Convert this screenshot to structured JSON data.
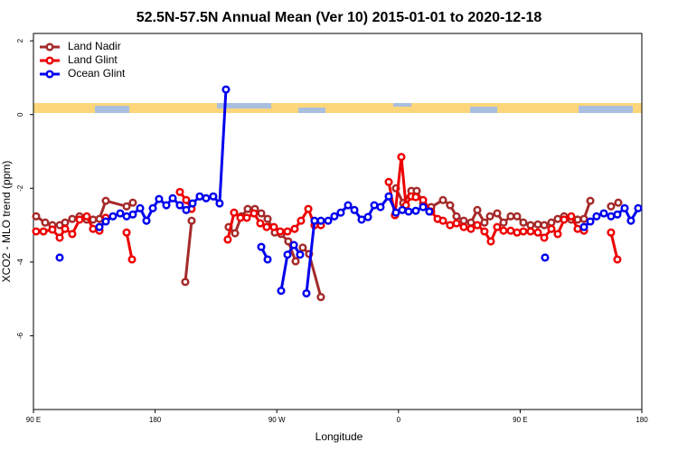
{
  "chart_data": {
    "type": "line",
    "title": "52.5N-57.5N Annual Mean (Ver 10)   2015-01-01 to 2020-12-18",
    "xlabel": "Longitude",
    "ylabel": "XCO2 - MLO trend (ppm)",
    "xlim": [
      90,
      540
    ],
    "ylim": [
      -8,
      2.2
    ],
    "xticks": [
      {
        "value": 90,
        "label": "90 E"
      },
      {
        "value": 180,
        "label": "180"
      },
      {
        "value": 270,
        "label": "90 W"
      },
      {
        "value": 360,
        "label": "0"
      },
      {
        "value": 450,
        "label": "90 E"
      },
      {
        "value": 540,
        "label": "180"
      }
    ],
    "yticks": [
      2,
      0,
      -2,
      -4,
      -6
    ],
    "legend": "top-left",
    "series": [
      {
        "name": "Land Nadir",
        "color": "#a52a2a",
        "x": [
          92,
          98.7,
          104,
          109.4,
          113.4,
          118.7,
          124.1,
          129.4,
          134.1,
          138.8,
          143.5,
          158.9,
          163.5,
          null,
          202.3,
          207,
          null,
          234.4,
          239.1,
          243.8,
          248.5,
          253.8,
          258.5,
          263.2,
          268.5,
          273.2,
          278.5,
          283.9,
          289.2,
          293.9,
          302.6,
          null,
          358.1,
          363.5,
          369.5,
          373.5,
          378.2,
          384.2,
          392.9,
          398.2,
          402.9,
          408.3,
          413.6,
          418.3,
          423.6,
          427.7,
          433,
          437.7,
          443,
          447.7,
          452.4,
          457.7,
          463.1,
          467.8,
          473.1,
          477.8,
          482.5,
          487.8,
          492.5,
          497.2,
          501.9,
          null,
          517.2,
          522.6
        ],
        "values": [
          -2.76,
          -2.93,
          -3.0,
          -3.0,
          -2.93,
          -2.83,
          -2.76,
          -2.85,
          -2.85,
          -2.83,
          -2.34,
          -2.49,
          -2.39,
          null,
          -4.54,
          -2.88,
          null,
          -3.05,
          -3.22,
          -2.76,
          -2.56,
          -2.56,
          -2.68,
          -2.83,
          -3.2,
          -3.24,
          -3.44,
          -3.98,
          -3.61,
          -3.78,
          -4.95,
          null,
          -2.0,
          -2.4,
          -2.07,
          -2.07,
          -2.41,
          -2.51,
          -2.32,
          -2.46,
          -2.76,
          -2.88,
          -2.93,
          -2.59,
          -2.93,
          -2.76,
          -2.68,
          -2.93,
          -2.76,
          -2.76,
          -2.93,
          -3.0,
          -2.98,
          -3.0,
          -2.93,
          -2.83,
          -2.76,
          -2.85,
          -2.85,
          -2.83,
          -2.34,
          null,
          -2.49,
          -2.39
        ]
      },
      {
        "name": "Land Glint",
        "color": "#ee0000",
        "x": [
          92,
          97.4,
          104,
          109.4,
          113.4,
          118.7,
          124.1,
          129.4,
          134.1,
          138.8,
          143.5,
          null,
          158.9,
          162.9,
          null,
          198.3,
          203,
          206.9,
          null,
          233.7,
          238.4,
          243.1,
          247.8,
          253.1,
          257.8,
          262.5,
          267.8,
          272.5,
          277.9,
          283.2,
          287.9,
          293.3,
          297.9,
          302.6,
          null,
          352.8,
          357.4,
          362.1,
          365.5,
          369.5,
          372.8,
          378.2,
          384.2,
          388.9,
          392.9,
          398.2,
          402.9,
          408.3,
          413.6,
          418.3,
          423.6,
          428.3,
          433,
          437.7,
          443,
          447.7,
          452.4,
          457.7,
          463.1,
          467.8,
          473.1,
          477.8,
          482.5,
          487.8,
          492.5,
          497.2,
          null,
          517.2,
          521.9
        ],
        "values": [
          -3.17,
          -3.17,
          -3.12,
          -3.34,
          -3.1,
          -3.24,
          -2.85,
          -2.76,
          -3.1,
          -3.15,
          -2.8,
          null,
          -3.2,
          -3.93,
          null,
          -2.1,
          -2.32,
          -2.56,
          null,
          -3.39,
          -2.66,
          -2.8,
          -2.8,
          -2.68,
          -2.95,
          -3.05,
          -3.05,
          -3.17,
          -3.17,
          -3.1,
          -2.88,
          -2.56,
          -3.0,
          -3.0,
          null,
          -1.83,
          -2.73,
          -1.15,
          -2.46,
          -2.22,
          -2.24,
          -2.32,
          -2.63,
          -2.83,
          -2.88,
          -3.0,
          -2.95,
          -3.05,
          -3.1,
          -3.0,
          -3.17,
          -3.44,
          -3.05,
          -3.15,
          -3.15,
          -3.2,
          -3.17,
          -3.17,
          -3.2,
          -3.34,
          -3.1,
          -3.24,
          -2.85,
          -2.76,
          -3.1,
          -3.15,
          null,
          -3.2,
          -3.93
        ]
      },
      {
        "name": "Ocean Glint",
        "color": "#0000ee",
        "x": [
          109.4,
          null,
          138.8,
          143.5,
          148.8,
          154.2,
          158.9,
          163.5,
          168.9,
          173.6,
          178.3,
          182.9,
          188.3,
          193,
          198.3,
          203,
          207.7,
          213,
          217.7,
          223,
          227.7,
          232.4,
          null,
          258.5,
          263.2,
          null,
          273.2,
          277.9,
          282.6,
          287.2,
          null,
          291.9,
          297.9,
          302.6,
          308,
          312.6,
          317.3,
          322.7,
          327.4,
          332.7,
          337.4,
          342.1,
          346.7,
          352.8,
          358.1,
          362.8,
          367.5,
          372.8,
          378.2,
          382.8,
          null,
          468.4,
          null,
          497.2,
          501.9,
          506.5,
          511.9,
          517.2,
          521.9,
          527.3,
          531.9,
          537.3
        ],
        "values": [
          -3.88,
          null,
          -3.05,
          -2.9,
          -2.76,
          -2.68,
          -2.76,
          -2.71,
          -2.54,
          -2.88,
          -2.54,
          -2.29,
          -2.46,
          -2.27,
          -2.46,
          -2.59,
          -2.41,
          -2.22,
          -2.27,
          -2.22,
          -2.41,
          0.68,
          null,
          -3.59,
          -3.93,
          null,
          -4.78,
          -3.8,
          -3.54,
          -3.8,
          null,
          -4.85,
          -2.88,
          -2.88,
          -2.88,
          -2.76,
          -2.66,
          -2.46,
          -2.59,
          -2.85,
          -2.78,
          -2.46,
          -2.51,
          -2.22,
          -2.66,
          -2.59,
          -2.63,
          -2.61,
          -2.51,
          -2.63,
          null,
          -3.88,
          null,
          -3.05,
          -2.9,
          -2.76,
          -2.68,
          -2.76,
          -2.71,
          -2.54,
          -2.88,
          -2.54
        ]
      }
    ]
  }
}
